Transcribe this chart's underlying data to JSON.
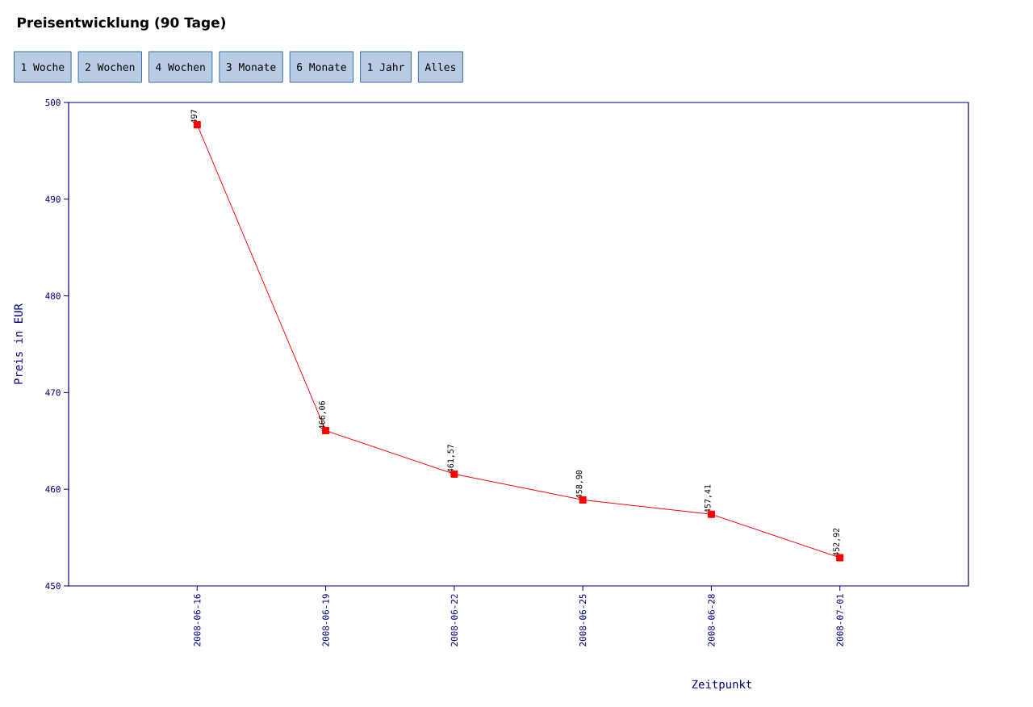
{
  "chart_data": {
    "type": "line",
    "title": "Preisentwicklung (90 Tage)",
    "annotations": [
      "1 Woche",
      "2 Wochen",
      "4 Wochen",
      "3 Monate",
      "6 Monate",
      "1 Jahr",
      "Alles",
      {
        "text": "497",
        "x": "2008-06-16",
        "y": 497.7
      }
    ],
    "xlabel": "Zeitpunkt",
    "ylabel": "Preis in EUR",
    "categories": [
      "2008-06-16",
      "2008-06-19",
      "2008-06-22",
      "2008-06-25",
      "2008-06-28",
      "2008-07-01"
    ],
    "values": [
      497.7,
      466.06,
      461.57,
      458.9,
      457.41,
      452.92
    ],
    "value_labels": [
      null,
      "466,06",
      "461,57",
      "458,90",
      "457,41",
      "452,92"
    ],
    "color": "#ff0000",
    "marker": "square",
    "line_style": "solid",
    "ylim": [
      450,
      500
    ],
    "yticks": [
      450,
      460,
      470,
      480,
      490,
      500
    ]
  }
}
